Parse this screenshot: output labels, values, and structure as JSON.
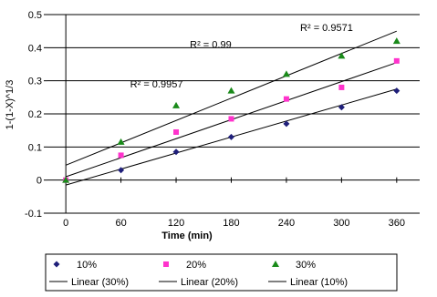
{
  "chart_data": {
    "type": "scatter",
    "xlabel": "Time (min)",
    "ylabel": "1-(1-X)^1/3",
    "x_ticks": [
      0,
      60,
      120,
      180,
      240,
      300,
      360
    ],
    "y_ticks": [
      -0.1,
      0,
      0.1,
      0.2,
      0.3,
      0.4,
      0.5
    ],
    "y_tick_labels": [
      "-0.1",
      "0",
      "0.1",
      "0.2",
      "0.3",
      "0.4",
      "0.5"
    ],
    "xlim": [
      -20,
      385
    ],
    "ylim": [
      -0.1,
      0.5
    ],
    "grid": "horizontal",
    "legend_position": "bottom",
    "series": [
      {
        "name": "10%",
        "marker": "diamond",
        "color": "#1f1f7a",
        "x": [
          0,
          60,
          120,
          180,
          240,
          300,
          360
        ],
        "y": [
          0,
          0.03,
          0.085,
          0.13,
          0.17,
          0.22,
          0.27
        ]
      },
      {
        "name": "20%",
        "marker": "square",
        "color": "#ff33cc",
        "x": [
          0,
          60,
          120,
          180,
          240,
          300,
          360
        ],
        "y": [
          0,
          0.075,
          0.145,
          0.185,
          0.245,
          0.28,
          0.36
        ]
      },
      {
        "name": "30%",
        "marker": "triangle",
        "color": "#1a8a1a",
        "x": [
          0,
          60,
          120,
          180,
          240,
          300,
          360
        ],
        "y": [
          0,
          0.115,
          0.225,
          0.27,
          0.32,
          0.375,
          0.42
        ]
      }
    ],
    "trendlines": [
      {
        "name": "Linear (30%)",
        "x": [
          0,
          360
        ],
        "y": [
          0.045,
          0.45
        ],
        "r2_label": "R² = 0.9571",
        "label_x": 255,
        "label_y": 0.45
      },
      {
        "name": "Linear (20%)",
        "x": [
          0,
          360
        ],
        "y": [
          0.01,
          0.355
        ],
        "r2_label": "R² = 0.99",
        "label_x": 135,
        "label_y": 0.4
      },
      {
        "name": "Linear (10%)",
        "x": [
          0,
          360
        ],
        "y": [
          -0.015,
          0.275
        ],
        "r2_label": "R² = 0.9957",
        "label_x": 70,
        "label_y": 0.28
      }
    ],
    "legend": {
      "row1": [
        "10%",
        "20%",
        "30%"
      ],
      "row2": [
        "Linear (30%)",
        "Linear (20%)",
        "Linear (10%)"
      ]
    }
  }
}
